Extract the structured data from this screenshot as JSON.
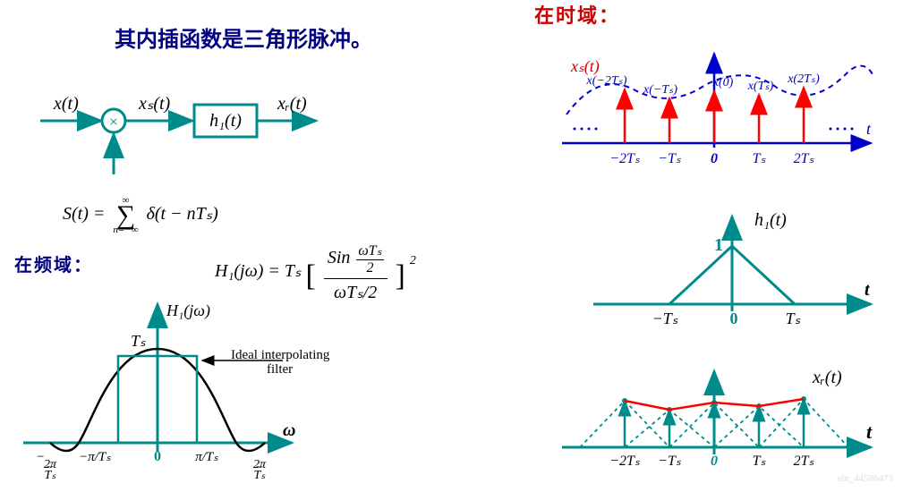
{
  "title": "其内插函数是三角形脉冲。",
  "time_domain_label": "在时域：",
  "freq_domain_label": "在频域：",
  "block_diagram": {
    "x_t": "x(t)",
    "xs_t": "xₛ(t)",
    "h1_t": "h₁(t)",
    "xr_t": "xᵣ(t)",
    "node_label": "⊗",
    "colors": {
      "teal": "#008b8b",
      "black": "#000000"
    }
  },
  "sum_formula": {
    "lhs": "S(t) =",
    "sigma_sup": "∞",
    "sigma_sub": "n=−∞",
    "body": "δ(t − nTₛ)"
  },
  "h1_formula": {
    "lhs": "H₁(jω) = Tₛ",
    "frac_num_a": "Sin",
    "frac_num_b_num": "ωTₛ",
    "frac_num_b_den": "2",
    "frac_den": "ωTₛ/2",
    "exp": "2"
  },
  "freq_plot": {
    "title": "H₁(jω)",
    "ylabel_top": "Tₛ",
    "annotations": [
      "Ideal interpolating",
      "filter"
    ],
    "xlabel_bold": "ω",
    "xticks": [
      "−2π/Tₛ",
      "−π/Tₛ",
      "0",
      "π/Tₛ",
      "2π/Tₛ"
    ],
    "colors": {
      "axis": "#008b8b",
      "curve": "#000000",
      "rect": "#008b8b",
      "text": "#000000"
    }
  },
  "time_plot1": {
    "signal_label": "xₛ(t)",
    "signal_label_color": "#cc0000",
    "sample_labels": [
      "x(−2Tₛ)",
      "x(−Tₛ)",
      "x(0)",
      "x(Tₛ)",
      "x(2Tₛ)"
    ],
    "sample_label_color": "#0000cc",
    "xticks": [
      "−2Tₛ",
      "−Tₛ",
      "0",
      "Tₛ",
      "2Tₛ"
    ],
    "x_axis_label": "t",
    "colors": {
      "axis": "#0000cc",
      "impulse": "#ff0000",
      "dashed_curve": "#0000cc",
      "dots": "#0000cc",
      "tick_text": "#0000cc"
    },
    "heights": [
      60,
      50,
      58,
      54,
      62
    ]
  },
  "time_plot2": {
    "title": "h₁(t)",
    "title_color": "#000000",
    "peak_label": "1",
    "peak_color": "#008b8b",
    "xticks": [
      "−Tₛ",
      "0",
      "Tₛ"
    ],
    "x_axis_label": "t",
    "colors": {
      "axis": "#008b8b",
      "triangle": "#008b8b",
      "text": "#000000"
    }
  },
  "time_plot3": {
    "title": "xᵣ(t)",
    "title_color": "#000000",
    "xticks": [
      "−2Tₛ",
      "−Tₛ",
      "0",
      "Tₛ",
      "2Tₛ"
    ],
    "x_axis_label": "t",
    "colors": {
      "axis": "#008b8b",
      "impulse": "#008b8b",
      "dashed_tri": "#008b8b",
      "envelope": "#ff0000"
    },
    "heights": [
      52,
      42,
      50,
      46,
      54
    ]
  },
  "watermark": "sin_44586473"
}
